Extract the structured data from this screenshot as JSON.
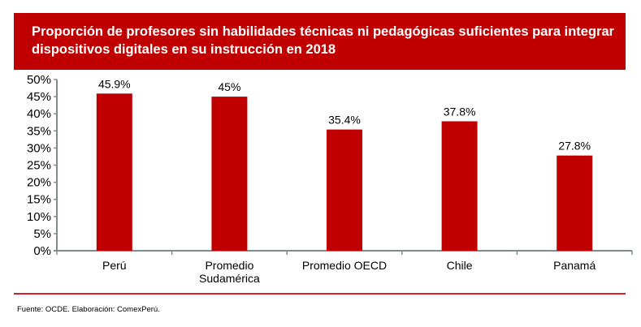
{
  "chart_data": {
    "type": "bar",
    "title": "Proporción de profesores sin habilidades técnicas ni pedagógicas suficientes para integrar dispositivos digitales en su instrucción en 2018",
    "categories": [
      "Perú",
      "Promedio Sudamérica",
      "Promedio OECD",
      "Chile",
      "Panamá"
    ],
    "category_lines": [
      [
        "Perú"
      ],
      [
        "Promedio",
        "Sudamérica"
      ],
      [
        "Promedio OECD"
      ],
      [
        "Chile"
      ],
      [
        "Panamá"
      ]
    ],
    "values": [
      45.9,
      45,
      35.4,
      37.8,
      27.8
    ],
    "data_labels": [
      "45.9%",
      "45%",
      "35.4%",
      "37.8%",
      "27.8%"
    ],
    "ylim": [
      0,
      50
    ],
    "yticks": [
      "0%",
      "5%",
      "10%",
      "15%",
      "20%",
      "25%",
      "30%",
      "35%",
      "40%",
      "45%",
      "50%"
    ],
    "xlabel": "",
    "ylabel": "",
    "grid": false,
    "bar_color": "#c00000",
    "source": "Fuente: OCDE. Elaboración: ComexPerú."
  }
}
